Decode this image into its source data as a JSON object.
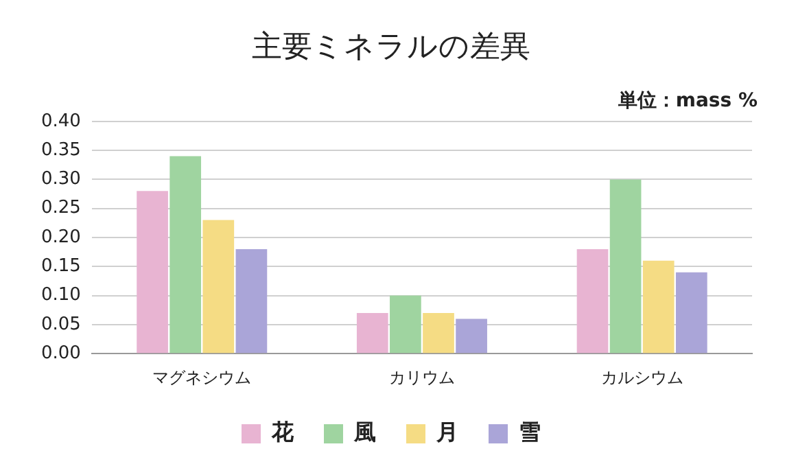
{
  "chart_data": {
    "type": "bar",
    "title": "主要ミネラルの差異",
    "annotations": [
      "単位：mass %"
    ],
    "categories": [
      "マグネシウム",
      "カリウム",
      "カルシウム"
    ],
    "series": [
      {
        "name": "花",
        "color": "#e8b4d2",
        "values": [
          0.28,
          0.07,
          0.18
        ]
      },
      {
        "name": "風",
        "color": "#9fd4a0",
        "values": [
          0.34,
          0.1,
          0.3
        ]
      },
      {
        "name": "月",
        "color": "#f5dc84",
        "values": [
          0.23,
          0.07,
          0.16
        ]
      },
      {
        "name": "雪",
        "color": "#aaa5d8",
        "values": [
          0.18,
          0.06,
          0.14
        ]
      }
    ],
    "ylim": [
      0,
      0.4
    ],
    "yticks": [
      {
        "value": 0,
        "label": "0.00"
      },
      {
        "value": 0.05,
        "label": "0.05"
      },
      {
        "value": 0.1,
        "label": "0.10"
      },
      {
        "value": 0.15,
        "label": "0.15"
      },
      {
        "value": 0.2,
        "label": "0.20"
      },
      {
        "value": 0.25,
        "label": "0.25"
      },
      {
        "value": 0.3,
        "label": "0.30"
      },
      {
        "value": 0.35,
        "label": "0.35"
      },
      {
        "value": 0.4,
        "label": "0.40"
      }
    ],
    "grid": "y",
    "legend": "bottom"
  }
}
